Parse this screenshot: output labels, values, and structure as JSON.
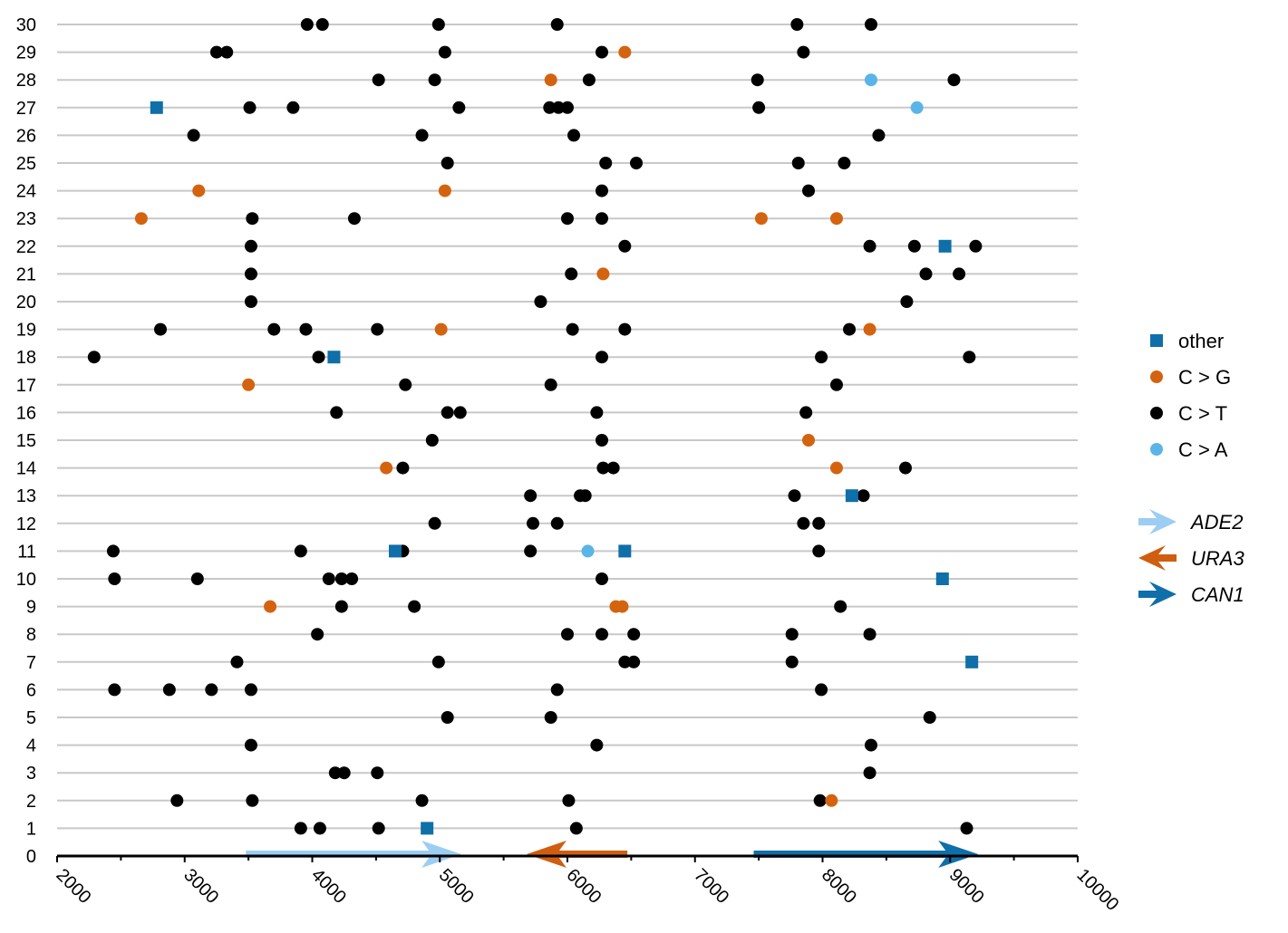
{
  "colors": {
    "other": "#0f6fa8",
    "c_to_g": "#d4630f",
    "c_to_t": "#000000",
    "c_to_a": "#5ab4e8",
    "gridline": "#c8c8c8",
    "axis": "#000000",
    "ADE2": "#9ccdf2",
    "URA3": "#cf5e10",
    "CAN1": "#0f6fa8"
  },
  "chart_data": {
    "type": "scatter",
    "title": "",
    "xlabel": "",
    "ylabel": "",
    "xlim": [
      2000,
      10000
    ],
    "ylim": [
      0,
      30
    ],
    "x_ticks": [
      2000,
      3000,
      4000,
      5000,
      6000,
      7000,
      8000,
      9000,
      10000
    ],
    "y_ticks": [
      0,
      1,
      2,
      3,
      4,
      5,
      6,
      7,
      8,
      9,
      10,
      11,
      12,
      13,
      14,
      15,
      16,
      17,
      18,
      19,
      20,
      21,
      22,
      23,
      24,
      25,
      26,
      27,
      28,
      29,
      30
    ],
    "grid": "horizontal",
    "legend_position": "right",
    "series": [
      {
        "name": "other",
        "marker": "square",
        "points": [
          [
            2780,
            27
          ],
          [
            8960,
            22
          ],
          [
            4170,
            18
          ],
          [
            8230,
            13
          ],
          [
            4650,
            11
          ],
          [
            6450,
            11
          ],
          [
            8940,
            10
          ],
          [
            9170,
            7
          ],
          [
            4900,
            1
          ]
        ]
      },
      {
        "name": "C > G",
        "marker": "circle",
        "points": [
          [
            6450,
            29
          ],
          [
            5870,
            28
          ],
          [
            3110,
            24
          ],
          [
            5040,
            24
          ],
          [
            2660,
            23
          ],
          [
            7520,
            23
          ],
          [
            8110,
            23
          ],
          [
            6280,
            21
          ],
          [
            5010,
            19
          ],
          [
            8370,
            19
          ],
          [
            3500,
            17
          ],
          [
            7890,
            15
          ],
          [
            4580,
            14
          ],
          [
            8110,
            14
          ],
          [
            3670,
            9
          ],
          [
            6380,
            9
          ],
          [
            6430,
            9
          ],
          [
            8070,
            2
          ]
        ]
      },
      {
        "name": "C > T",
        "marker": "circle",
        "points": [
          [
            3960,
            30
          ],
          [
            4080,
            30
          ],
          [
            4990,
            30
          ],
          [
            5920,
            30
          ],
          [
            7800,
            30
          ],
          [
            8380,
            30
          ],
          [
            3250,
            29
          ],
          [
            3330,
            29
          ],
          [
            5040,
            29
          ],
          [
            6270,
            29
          ],
          [
            7850,
            29
          ],
          [
            4520,
            28
          ],
          [
            4960,
            28
          ],
          [
            6170,
            28
          ],
          [
            7490,
            28
          ],
          [
            9030,
            28
          ],
          [
            3510,
            27
          ],
          [
            3850,
            27
          ],
          [
            5150,
            27
          ],
          [
            5860,
            27
          ],
          [
            5930,
            27
          ],
          [
            6000,
            27
          ],
          [
            7500,
            27
          ],
          [
            3070,
            26
          ],
          [
            4860,
            26
          ],
          [
            6050,
            26
          ],
          [
            8440,
            26
          ],
          [
            5060,
            25
          ],
          [
            6300,
            25
          ],
          [
            6540,
            25
          ],
          [
            7810,
            25
          ],
          [
            8170,
            25
          ],
          [
            6270,
            24
          ],
          [
            7890,
            24
          ],
          [
            3530,
            23
          ],
          [
            4330,
            23
          ],
          [
            6000,
            23
          ],
          [
            6270,
            23
          ],
          [
            3520,
            22
          ],
          [
            6450,
            22
          ],
          [
            8370,
            22
          ],
          [
            8720,
            22
          ],
          [
            9200,
            22
          ],
          [
            3520,
            21
          ],
          [
            6030,
            21
          ],
          [
            8810,
            21
          ],
          [
            9070,
            21
          ],
          [
            3520,
            20
          ],
          [
            5790,
            20
          ],
          [
            8660,
            20
          ],
          [
            2810,
            19
          ],
          [
            3700,
            19
          ],
          [
            3950,
            19
          ],
          [
            4510,
            19
          ],
          [
            6040,
            19
          ],
          [
            6450,
            19
          ],
          [
            8210,
            19
          ],
          [
            2290,
            18
          ],
          [
            4050,
            18
          ],
          [
            6270,
            18
          ],
          [
            7990,
            18
          ],
          [
            9150,
            18
          ],
          [
            4730,
            17
          ],
          [
            5870,
            17
          ],
          [
            8110,
            17
          ],
          [
            4190,
            16
          ],
          [
            5060,
            16
          ],
          [
            5160,
            16
          ],
          [
            6230,
            16
          ],
          [
            7870,
            16
          ],
          [
            4940,
            15
          ],
          [
            6270,
            15
          ],
          [
            4710,
            14
          ],
          [
            6280,
            14
          ],
          [
            6360,
            14
          ],
          [
            8650,
            14
          ],
          [
            5710,
            13
          ],
          [
            6100,
            13
          ],
          [
            6140,
            13
          ],
          [
            7780,
            13
          ],
          [
            8320,
            13
          ],
          [
            4960,
            12
          ],
          [
            5730,
            12
          ],
          [
            5920,
            12
          ],
          [
            7850,
            12
          ],
          [
            7970,
            12
          ],
          [
            2440,
            11
          ],
          [
            3910,
            11
          ],
          [
            4710,
            11
          ],
          [
            5710,
            11
          ],
          [
            7970,
            11
          ],
          [
            2450,
            10
          ],
          [
            3100,
            10
          ],
          [
            4130,
            10
          ],
          [
            4230,
            10
          ],
          [
            4310,
            10
          ],
          [
            6270,
            10
          ],
          [
            4230,
            9
          ],
          [
            4800,
            9
          ],
          [
            8140,
            9
          ],
          [
            4040,
            8
          ],
          [
            6000,
            8
          ],
          [
            6270,
            8
          ],
          [
            6520,
            8
          ],
          [
            7760,
            8
          ],
          [
            8370,
            8
          ],
          [
            3410,
            7
          ],
          [
            4990,
            7
          ],
          [
            6450,
            7
          ],
          [
            6520,
            7
          ],
          [
            7760,
            7
          ],
          [
            2450,
            6
          ],
          [
            2880,
            6
          ],
          [
            3210,
            6
          ],
          [
            3520,
            6
          ],
          [
            5920,
            6
          ],
          [
            7990,
            6
          ],
          [
            5060,
            5
          ],
          [
            5870,
            5
          ],
          [
            8840,
            5
          ],
          [
            3520,
            4
          ],
          [
            6230,
            4
          ],
          [
            8380,
            4
          ],
          [
            4180,
            3
          ],
          [
            4250,
            3
          ],
          [
            4510,
            3
          ],
          [
            8370,
            3
          ],
          [
            2940,
            2
          ],
          [
            3530,
            2
          ],
          [
            4860,
            2
          ],
          [
            6010,
            2
          ],
          [
            7980,
            2
          ],
          [
            3910,
            1
          ],
          [
            4060,
            1
          ],
          [
            4520,
            1
          ],
          [
            6070,
            1
          ],
          [
            9130,
            1
          ]
        ]
      },
      {
        "name": "C > A",
        "marker": "circle",
        "points": [
          [
            8380,
            28
          ],
          [
            8740,
            27
          ],
          [
            6160,
            11
          ]
        ]
      }
    ],
    "genes": [
      {
        "name": "ADE2",
        "start": 3480,
        "end": 5170,
        "direction": "right"
      },
      {
        "name": "URA3",
        "start": 6470,
        "end": 5680,
        "direction": "left"
      },
      {
        "name": "CAN1",
        "start": 7460,
        "end": 9220,
        "direction": "right"
      }
    ]
  }
}
